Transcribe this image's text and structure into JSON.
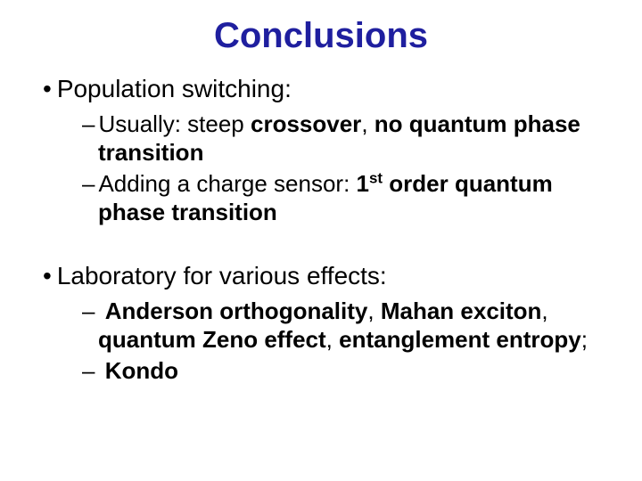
{
  "title": {
    "text": "Conclusions",
    "color": "#1f1f9f",
    "fontsize": 40
  },
  "body_fontsize_lvl1": 28,
  "body_fontsize_lvl2": 26,
  "bullets": [
    {
      "text": "Population switching:",
      "sub": [
        {
          "pre": "Usually: steep ",
          "bold1": "crossover",
          "mid1": ", ",
          "bold2": "no quantum phase transition"
        },
        {
          "pre": "Adding a charge sensor: ",
          "bold1_html": "1<sup>st</sup> order quantum phase transition"
        }
      ]
    },
    {
      "text": "Laboratory for various effects:",
      "sub": [
        {
          "pre": " ",
          "bold1": "Anderson orthogonality",
          "mid1": ", ",
          "bold2": "Mahan exciton",
          "mid2": ", ",
          "bold3": "quantum Zeno effect",
          "mid3": ", ",
          "bold4": "entanglement entropy",
          "post": ";"
        },
        {
          "pre": " ",
          "bold1": "Kondo"
        }
      ]
    }
  ]
}
